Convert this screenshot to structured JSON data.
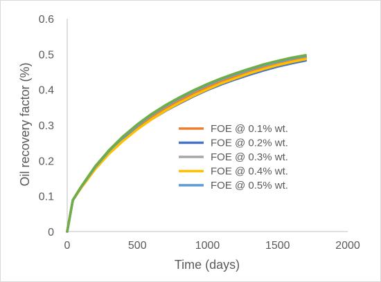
{
  "chart_data": {
    "type": "line",
    "title": "",
    "xlabel": "Time (days)",
    "ylabel": "Oil recovery factor (%)",
    "xlim": [
      0,
      2000
    ],
    "ylim": [
      0,
      0.6
    ],
    "xticks": [
      "0",
      "500",
      "1000",
      "1500",
      "2000"
    ],
    "yticks": [
      "0",
      "0.1",
      "0.2",
      "0.3",
      "0.4",
      "0.5",
      "0.6"
    ],
    "grid": false,
    "legend_position": "center-right",
    "x": [
      0,
      40,
      100,
      200,
      300,
      400,
      500,
      600,
      700,
      800,
      900,
      1000,
      1100,
      1200,
      1300,
      1400,
      1500,
      1600,
      1700
    ],
    "series": [
      {
        "name": "FOE @ 0.1% wt.",
        "color": "#ED7D31",
        "values": [
          0,
          0.088,
          0.125,
          0.18,
          0.225,
          0.263,
          0.295,
          0.323,
          0.348,
          0.37,
          0.39,
          0.408,
          0.424,
          0.438,
          0.451,
          0.463,
          0.474,
          0.483,
          0.49
        ]
      },
      {
        "name": "FOE @ 0.2% wt.",
        "color": "#4472C4",
        "values": [
          0,
          0.088,
          0.124,
          0.178,
          0.222,
          0.258,
          0.289,
          0.316,
          0.34,
          0.361,
          0.381,
          0.399,
          0.415,
          0.429,
          0.442,
          0.454,
          0.465,
          0.474,
          0.482
        ]
      },
      {
        "name": "FOE @ 0.3% wt.",
        "color": "#A5A5A5",
        "values": [
          0,
          0.088,
          0.126,
          0.182,
          0.228,
          0.266,
          0.299,
          0.328,
          0.353,
          0.375,
          0.395,
          0.413,
          0.429,
          0.443,
          0.456,
          0.468,
          0.478,
          0.487,
          0.494
        ]
      },
      {
        "name": "FOE @ 0.4% wt.",
        "color": "#FFC000",
        "values": [
          0,
          0.088,
          0.123,
          0.176,
          0.22,
          0.256,
          0.288,
          0.316,
          0.341,
          0.363,
          0.383,
          0.401,
          0.418,
          0.432,
          0.446,
          0.458,
          0.469,
          0.478,
          0.486
        ]
      },
      {
        "name": "FOE @ 0.5% wt.",
        "color": "#5B9BD5",
        "values": [
          0,
          0.088,
          0.126,
          0.182,
          0.228,
          0.267,
          0.3,
          0.329,
          0.354,
          0.376,
          0.396,
          0.414,
          0.43,
          0.444,
          0.457,
          0.469,
          0.479,
          0.488,
          0.495
        ]
      },
      {
        "name": "",
        "color": "#70AD47",
        "values": [
          0,
          0.089,
          0.127,
          0.184,
          0.23,
          0.269,
          0.302,
          0.331,
          0.356,
          0.378,
          0.398,
          0.416,
          0.432,
          0.446,
          0.459,
          0.471,
          0.481,
          0.49,
          0.497
        ]
      }
    ]
  }
}
